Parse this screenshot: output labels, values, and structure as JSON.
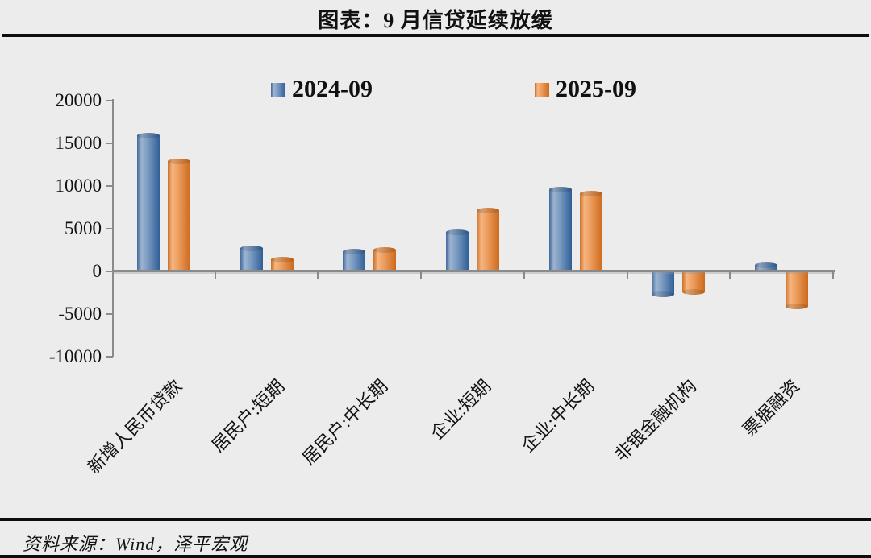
{
  "title": "图表：9 月信贷延续放缓",
  "footer": {
    "source": "资料来源：Wind，泽平宏观"
  },
  "colors": {
    "vars": {
      "blue-edge": "#41699e",
      "blue-light": "#9db4d0",
      "blue-mid": "#7697bf",
      "blue-dark": "#305f97",
      "orange-edge": "#ce6d24",
      "orange-light": "#f5b681",
      "orange-mid": "#eb9a59",
      "orange-dark": "#cc6a1d",
      "axis": "#8a8a8a",
      "bg": "#ececec",
      "rule": "#0d0d0d",
      "text": "#111111"
    }
  },
  "chart_data": {
    "type": "bar",
    "title": "图表：9 月信贷延续放缓",
    "categories": [
      "新增人民币贷款",
      "居民户:短期",
      "居民户:中长期",
      "企业:短期",
      "企业:中长期",
      "非银金融机构",
      "票据融资"
    ],
    "series": [
      {
        "name": "2024-09",
        "color": "#305f97",
        "values": [
          15900,
          2700,
          2300,
          4600,
          9600,
          -2700,
          700
        ]
      },
      {
        "name": "2025-09",
        "color": "#cc6a1d",
        "values": [
          12900,
          1400,
          2500,
          7100,
          9100,
          -2400,
          -4100
        ]
      }
    ],
    "xlabel": "",
    "ylabel": "",
    "ylim": [
      -10000,
      20000
    ],
    "yticks": [
      20000,
      15000,
      10000,
      5000,
      0,
      -5000,
      -10000
    ],
    "grid": false,
    "legend_position": "top"
  }
}
